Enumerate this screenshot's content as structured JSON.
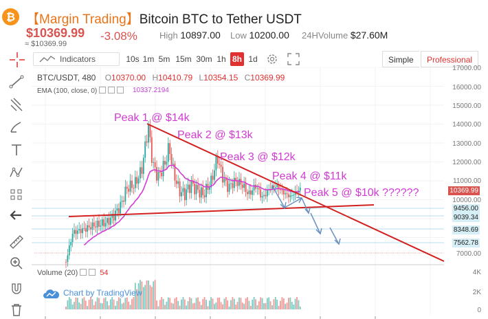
{
  "header": {
    "coin_symbol": "₿",
    "title_tag": "【Margin Trading】",
    "title_pair": "Bitcoin BTC  to Tether USDT",
    "price": "$10369.99",
    "price_usd": "≈ $10369.99",
    "change": "-3.08%",
    "high_label": "High",
    "high_value": "10897.00",
    "low_label": "Low",
    "low_value": "10200.00",
    "volume_label": "24HVolume",
    "volume_value": "$27.60M"
  },
  "toolbar": {
    "indicators_label": "Indicators",
    "timeframes": [
      "10s",
      "1m",
      "5m",
      "15m",
      "30m",
      "1h",
      "8h",
      "1d"
    ],
    "active_timeframe": "8h",
    "simple_label": "Simple",
    "professional_label": "Professional"
  },
  "legend": {
    "symbol": "BTC/USDT, 480",
    "o_label": "O",
    "o_value": "10370.00",
    "h_label": "H",
    "h_value": "10410.79",
    "l_label": "L",
    "l_value": "10354.15",
    "c_label": "C",
    "c_value": "10369.99",
    "ema_label": "EMA (100, close, 0)",
    "ema_value": "10337.2194",
    "volume_label": "Volume (20)",
    "volume_value": "54"
  },
  "price_axis": {
    "ticks": [
      "17000.00",
      "16000.00",
      "15000.00",
      "14000.00",
      "13000.00",
      "12000.00",
      "11000.00",
      "10000.00",
      "7000.00"
    ],
    "badges": [
      "9456.00",
      "9039.34",
      "8348.69",
      "7562.78"
    ],
    "current": "10369.99",
    "volume_ticks": [
      "4K",
      "2K",
      "0"
    ]
  },
  "annotations": {
    "peak1": "Peak 1 @ $14k",
    "peak2": "Peak 2 @ $13k",
    "peak3": "Peak 3 @ $12k",
    "peak4": "Peak 4 @ $11k",
    "peak5": "Peak 5 @ $10k  ??????"
  },
  "watermark": "Chart by TradingView",
  "colors": {
    "up": "#26a69a",
    "down": "#ef5350",
    "accent": "#e0302f",
    "ema": "#d23ad4",
    "trendline": "#d22020",
    "arrow": "#6b8fc0"
  },
  "icons": [
    "bitcoin-icon",
    "crosshair-icon",
    "trendline-icon",
    "pitchfork-icon",
    "brush-icon",
    "text-icon",
    "pattern-icon",
    "measure-icon",
    "back-arrow-icon",
    "ruler-icon",
    "zoom-icon",
    "magnet-icon",
    "trash-icon",
    "gear-icon",
    "expand-icon"
  ]
}
